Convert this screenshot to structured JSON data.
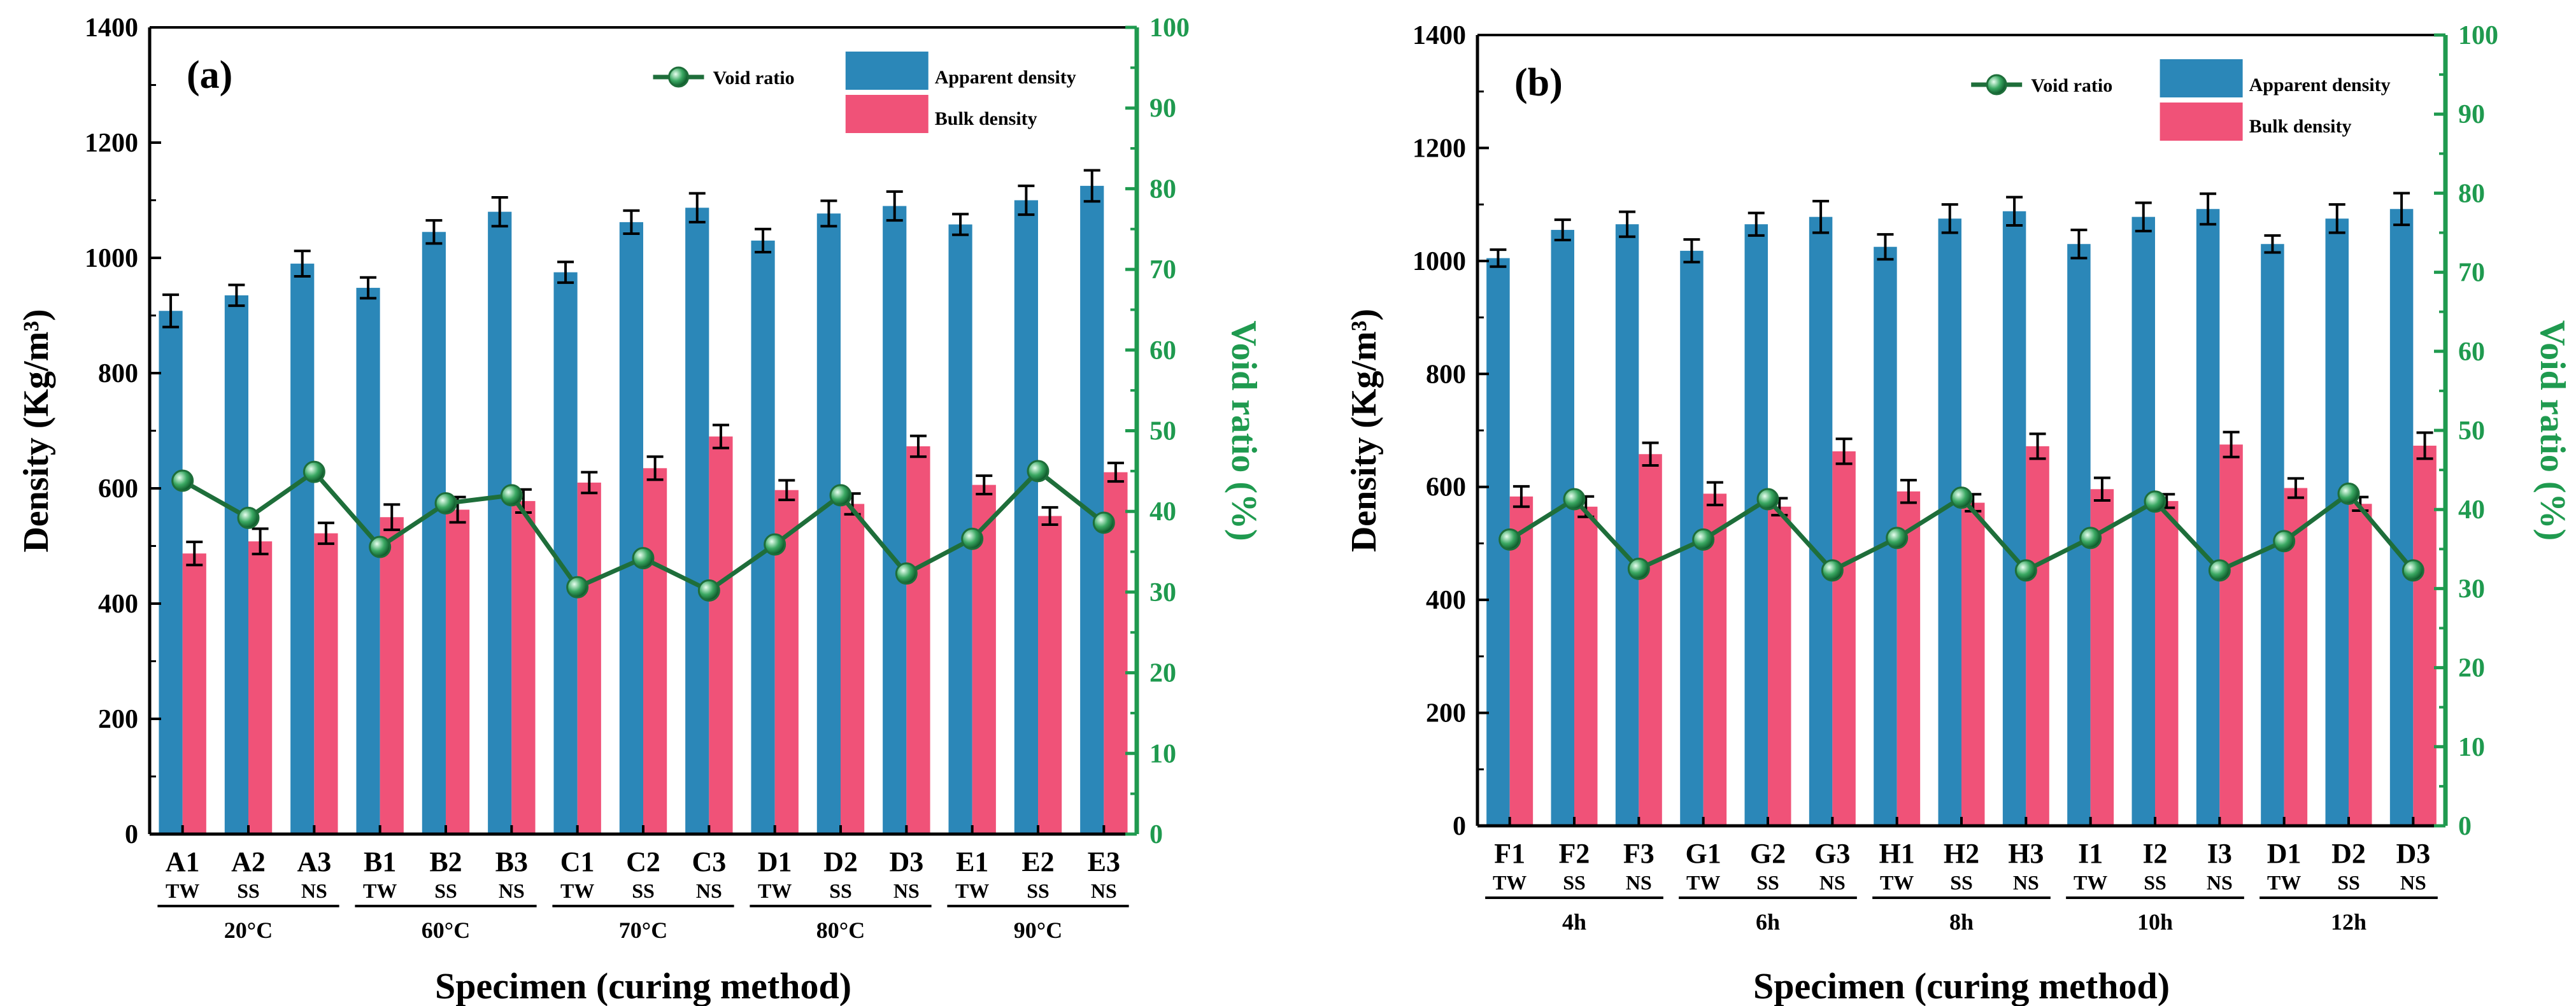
{
  "colors": {
    "apparent": "#2b87b8",
    "bulk": "#f05278",
    "void": "#1e6e3a",
    "void_axis": "#1f9a4f",
    "axis": "#000000"
  },
  "chart_data": [
    {
      "type": "bar",
      "panel_label": "(a)",
      "title": "",
      "xlabel": "Specimen (curing method)",
      "ylabel": "Density (Kg/m³)",
      "y2label": "Void ratio (%)",
      "ylim": [
        0,
        1400
      ],
      "y2lim": [
        0,
        100
      ],
      "yticks": [
        "0",
        "200",
        "400",
        "600",
        "800",
        "1000",
        "1200",
        "1400"
      ],
      "y2ticks": [
        "0",
        "10",
        "20",
        "30",
        "40",
        "50",
        "60",
        "70",
        "80",
        "90",
        "100"
      ],
      "categories": [
        "A1",
        "A2",
        "A3",
        "B1",
        "B2",
        "B3",
        "C1",
        "C2",
        "C3",
        "D1",
        "D2",
        "D3",
        "E1",
        "E2",
        "E3"
      ],
      "methods": [
        "TW",
        "SS",
        "NS",
        "TW",
        "SS",
        "NS",
        "TW",
        "SS",
        "NS",
        "TW",
        "SS",
        "NS",
        "TW",
        "SS",
        "NS"
      ],
      "groups": [
        "20°C",
        "60°C",
        "70°C",
        "80°C",
        "90°C"
      ],
      "legend": {
        "void": "Void ratio",
        "apparent": "Apparent density",
        "bulk": "Bulk density"
      },
      "series": [
        {
          "name": "Apparent density",
          "values": [
            908,
            935,
            990,
            948,
            1045,
            1080,
            975,
            1062,
            1087,
            1030,
            1077,
            1090,
            1058,
            1100,
            1125
          ],
          "errors": [
            28,
            18,
            22,
            18,
            20,
            25,
            18,
            20,
            25,
            20,
            22,
            25,
            18,
            25,
            27
          ]
        },
        {
          "name": "Bulk density",
          "values": [
            487,
            508,
            522,
            550,
            563,
            578,
            610,
            635,
            690,
            597,
            573,
            673,
            606,
            552,
            628
          ],
          "errors": [
            20,
            22,
            18,
            22,
            22,
            20,
            18,
            20,
            20,
            17,
            18,
            18,
            16,
            15,
            16
          ]
        },
        {
          "name": "Void ratio",
          "axis": "right",
          "values": [
            43.8,
            39.2,
            44.9,
            35.6,
            41.0,
            42.0,
            30.6,
            34.2,
            30.2,
            35.9,
            42.0,
            32.3,
            36.6,
            45.0,
            38.6
          ]
        }
      ]
    },
    {
      "type": "bar",
      "panel_label": "(b)",
      "title": "",
      "xlabel": "Specimen (curing method)",
      "ylabel": "Density (Kg/m³)",
      "y2label": "Void ratio (%)",
      "ylim": [
        0,
        1400
      ],
      "y2lim": [
        0,
        100
      ],
      "yticks": [
        "0",
        "200",
        "400",
        "600",
        "800",
        "1000",
        "1200",
        "1400"
      ],
      "y2ticks": [
        "0",
        "10",
        "20",
        "30",
        "40",
        "50",
        "60",
        "70",
        "80",
        "90",
        "100"
      ],
      "categories": [
        "F1",
        "F2",
        "F3",
        "G1",
        "G2",
        "G3",
        "H1",
        "H2",
        "H3",
        "I1",
        "I2",
        "I3",
        "D1",
        "D2",
        "D3"
      ],
      "methods": [
        "TW",
        "SS",
        "NS",
        "TW",
        "SS",
        "NS",
        "TW",
        "SS",
        "NS",
        "TW",
        "SS",
        "NS",
        "TW",
        "SS",
        "NS"
      ],
      "groups": [
        "4h",
        "6h",
        "8h",
        "10h",
        "12h"
      ],
      "legend": {
        "void": "Void ratio",
        "apparent": "Apparent density",
        "bulk": "Bulk density"
      },
      "series": [
        {
          "name": "Apparent density",
          "values": [
            1005,
            1055,
            1065,
            1018,
            1065,
            1078,
            1025,
            1075,
            1088,
            1030,
            1078,
            1092,
            1030,
            1075,
            1092
          ],
          "errors": [
            15,
            18,
            22,
            20,
            20,
            28,
            22,
            25,
            25,
            25,
            25,
            27,
            15,
            25,
            28
          ]
        },
        {
          "name": "Bulk density",
          "values": [
            583,
            565,
            658,
            588,
            565,
            663,
            592,
            572,
            672,
            596,
            575,
            675,
            598,
            570,
            673
          ],
          "errors": [
            18,
            18,
            20,
            20,
            15,
            22,
            20,
            15,
            22,
            20,
            12,
            22,
            17,
            12,
            23
          ]
        },
        {
          "name": "Void ratio",
          "axis": "right",
          "values": [
            36.2,
            41.3,
            32.5,
            36.2,
            41.3,
            32.3,
            36.4,
            41.5,
            32.3,
            36.4,
            41.0,
            32.3,
            36.0,
            42.0,
            32.3
          ]
        }
      ]
    }
  ]
}
